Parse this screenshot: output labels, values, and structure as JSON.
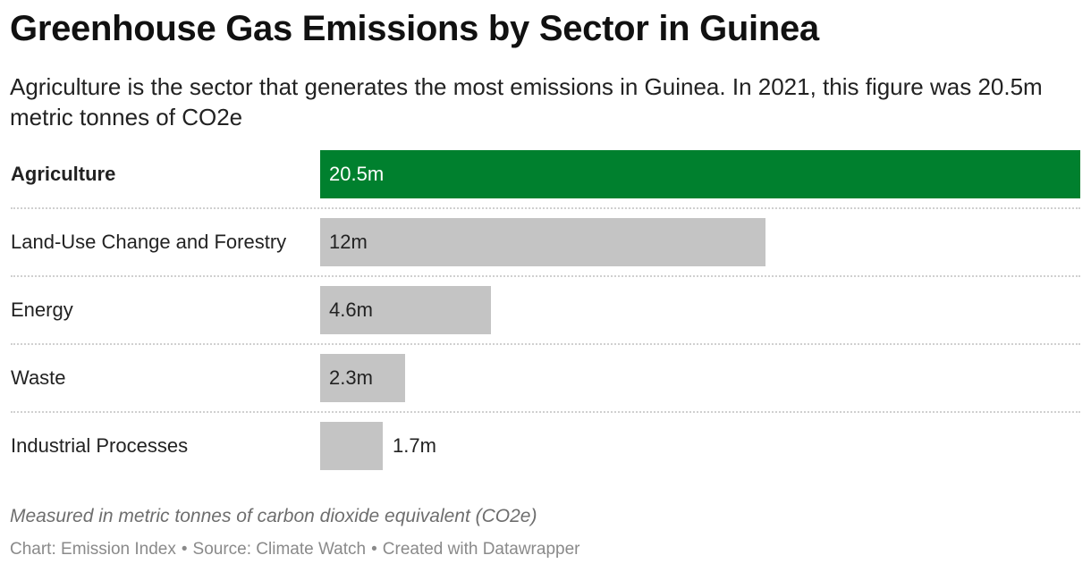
{
  "header": {
    "title": "Greenhouse Gas Emissions by Sector in Guinea",
    "subtitle": "Agriculture is the sector that generates the most emissions in Guinea. In 2021, this figure was 20.5m metric tonnes of CO2e"
  },
  "chart_data": {
    "type": "bar",
    "orientation": "horizontal",
    "categories": [
      "Agriculture",
      "Land-Use Change and Forestry",
      "Energy",
      "Waste",
      "Industrial Processes"
    ],
    "values": [
      20.5,
      12,
      4.6,
      2.3,
      1.7
    ],
    "value_labels": [
      "20.5m",
      "12m",
      "4.6m",
      "2.3m",
      "1.7m"
    ],
    "xlim": [
      0,
      20.5
    ],
    "highlight_category": "Agriculture",
    "colors": {
      "highlight": "#00802e",
      "default": "#c4c4c4",
      "highlight_label": "#ffffff",
      "default_label": "#222222"
    },
    "grid": false
  },
  "footer": {
    "notes": "Measured in metric tonnes of carbon dioxide equivalent (CO2e)",
    "chart_credit": "Chart: Emission Index",
    "separator": "•",
    "source": "Source: Climate Watch",
    "created_with": "Created with Datawrapper"
  }
}
